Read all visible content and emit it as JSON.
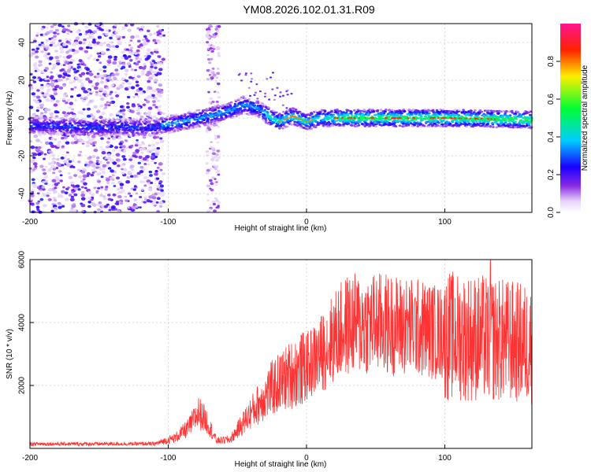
{
  "title": "YM08.2026.102.01.31.R09",
  "colors": {
    "snr_line": "#ff3333",
    "axis": "#000000",
    "grid": "#b0b0b0",
    "background": "#ffffff"
  },
  "chart_data": [
    {
      "type": "heatmap",
      "title": "YM08.2026.102.01.31.R09",
      "xlabel": "Height of straight line (km)",
      "ylabel": "Frequency (Hz)",
      "xlim": [
        -200,
        163
      ],
      "ylim": [
        -50,
        50
      ],
      "xticks": [
        -200,
        -100,
        0,
        100
      ],
      "yticks": [
        -40,
        -20,
        0,
        20,
        40
      ],
      "grid": true,
      "colorbar": {
        "label": "Normalized spectral amplitude",
        "range": [
          0,
          1
        ],
        "ticks": [
          "0.0",
          "0.2",
          "0.4",
          "0.6",
          "0.8"
        ],
        "colors": [
          "#ffffff",
          "#8a2be2",
          "#0000ff",
          "#00ffff",
          "#00ff00",
          "#ffff00",
          "#ff0000",
          "#ff00aa"
        ]
      },
      "center_frequency_track": [
        {
          "x": -200,
          "y": -4
        },
        {
          "x": -150,
          "y": -5
        },
        {
          "x": -110,
          "y": -5
        },
        {
          "x": -90,
          "y": -2
        },
        {
          "x": -70,
          "y": 1
        },
        {
          "x": -55,
          "y": 4
        },
        {
          "x": -45,
          "y": 7
        },
        {
          "x": -35,
          "y": 5
        },
        {
          "x": -25,
          "y": 0
        },
        {
          "x": -20,
          "y": -2
        },
        {
          "x": -10,
          "y": 1
        },
        {
          "x": 0,
          "y": -2
        },
        {
          "x": 10,
          "y": 0
        },
        {
          "x": 50,
          "y": 0
        },
        {
          "x": 100,
          "y": 0
        },
        {
          "x": 163,
          "y": -1
        }
      ]
    },
    {
      "type": "line",
      "xlabel": "Height of straight line (km)",
      "ylabel": "SNR (10 * v/v)",
      "xlim": [
        -200,
        163
      ],
      "ylim": [
        0,
        6000
      ],
      "xticks": [
        -200,
        -100,
        0,
        100
      ],
      "yticks": [
        2000,
        4000,
        6000
      ],
      "grid": true,
      "envelope": [
        {
          "x": -200,
          "y": 150
        },
        {
          "x": -150,
          "y": 150
        },
        {
          "x": -110,
          "y": 150
        },
        {
          "x": -95,
          "y": 350
        },
        {
          "x": -85,
          "y": 700
        },
        {
          "x": -78,
          "y": 1200
        },
        {
          "x": -72,
          "y": 900
        },
        {
          "x": -65,
          "y": 250
        },
        {
          "x": -55,
          "y": 300
        },
        {
          "x": -40,
          "y": 1200
        },
        {
          "x": -25,
          "y": 2000
        },
        {
          "x": -10,
          "y": 2500
        },
        {
          "x": 0,
          "y": 2700
        },
        {
          "x": 10,
          "y": 3100
        },
        {
          "x": 20,
          "y": 3700
        },
        {
          "x": 30,
          "y": 4100
        },
        {
          "x": 50,
          "y": 4150
        },
        {
          "x": 80,
          "y": 4000
        },
        {
          "x": 100,
          "y": 3800
        },
        {
          "x": 130,
          "y": 3700
        },
        {
          "x": 163,
          "y": 3500
        }
      ],
      "peak": {
        "x": 133,
        "y": 6000
      }
    }
  ]
}
